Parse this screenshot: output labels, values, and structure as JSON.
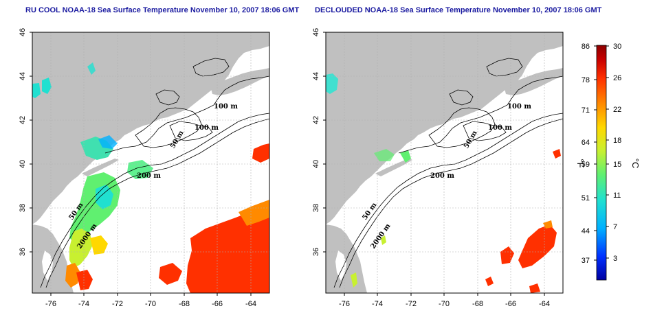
{
  "panels": [
    {
      "title": "RU COOL NOAA-18 Sea Surface Temperature November 10, 2007 18:06 GMT",
      "contour_labels": [
        "100 m",
        "100 m",
        "50 m",
        "200 m",
        "50 m",
        "2000 m"
      ]
    },
    {
      "title": "DECLOUDED NOAA-18 Sea Surface Temperature November 10, 2007 18:06 GMT",
      "contour_labels": [
        "100 m",
        "100 m",
        "50 m",
        "200 m",
        "50 m",
        "2000 m"
      ]
    }
  ],
  "axes": {
    "lon_ticks": [
      "-76",
      "-74",
      "-72",
      "-70",
      "-68",
      "-66",
      "-64"
    ],
    "lat_ticks": [
      "46",
      "44",
      "42",
      "40",
      "38",
      "36"
    ]
  },
  "colorbar": {
    "fahrenheit_ticks": [
      "86",
      "78",
      "71",
      "64",
      "59",
      "51",
      "44",
      "37"
    ],
    "celsius_ticks": [
      "30",
      "26",
      "22",
      "18",
      "15",
      "11",
      "7",
      "3"
    ],
    "fahrenheit_unit": "°F",
    "celsius_unit": "°C",
    "colors": [
      "#0000a0",
      "#0030ff",
      "#00b0ff",
      "#20e0d0",
      "#60f070",
      "#c8f030",
      "#ffd800",
      "#ff8a00",
      "#ff3000",
      "#c80000",
      "#8c0000"
    ]
  },
  "colors": {
    "land": "#c0c0c0",
    "water": "#ffffff",
    "title": "#1a1aa0",
    "grid": "#b0b0b0"
  }
}
